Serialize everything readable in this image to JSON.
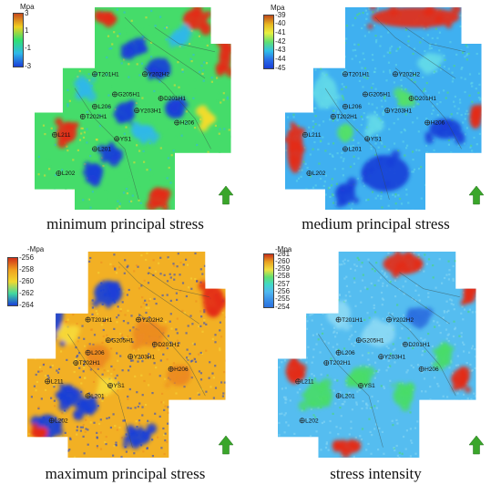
{
  "panels": [
    {
      "caption": "minimum principal stress",
      "unit": "Mpa",
      "ticks": [
        "3",
        "1",
        "-1",
        "-3"
      ],
      "colors": [
        "#c84a1c",
        "#f0d020",
        "#30e070",
        "#2fb8e8",
        "#1a3fd8"
      ],
      "palette": {
        "base": "#45dc6a",
        "light": "#2fb8e8",
        "dark": "#1a3fd8",
        "hot": "#e42a14",
        "warm": "#f3dc2a"
      }
    },
    {
      "caption": "medium principal stress",
      "unit": "Mpa",
      "ticks": [
        "-39",
        "-40",
        "-41",
        "-42",
        "-43",
        "-44",
        "-45"
      ],
      "colors": [
        "#c04a1a",
        "#e8b820",
        "#e8f040",
        "#60e070",
        "#30c0e8",
        "#2a70e8",
        "#1a3fd8"
      ],
      "palette": {
        "base": "#3fb0f0",
        "light": "#62d8e8",
        "dark": "#1a3fd8",
        "hot": "#e42a14",
        "warm": "#52e06a"
      }
    },
    {
      "caption": "maximum principal stress",
      "unit": "-Mpa",
      "ticks": [
        "-256",
        "-258",
        "-260",
        "-262",
        "-264"
      ],
      "colors": [
        "#d03018",
        "#f0a020",
        "#f0d830",
        "#40d8a0",
        "#1a3fd8"
      ],
      "palette": {
        "base": "#f2b024",
        "light": "#f6d838",
        "dark": "#1a3fd8",
        "hot": "#e42a14",
        "warm": "#ec8a20"
      }
    },
    {
      "caption": "stress intensity",
      "unit": "-Mpa",
      "ticks": [
        "-261",
        "-260",
        "-259",
        "-258",
        "-257",
        "-256",
        "-255",
        "-254"
      ],
      "colors": [
        "#c83018",
        "#e8a020",
        "#f0e040",
        "#60e070",
        "#40d8c8",
        "#50b8f0",
        "#3a90e8",
        "#2a70e0"
      ],
      "palette": {
        "base": "#55bdf0",
        "light": "#8ad8f4",
        "dark": "#2a70e0",
        "hot": "#e42a14",
        "warm": "#48dc68"
      }
    }
  ],
  "wells": [
    {
      "name": "T201H1",
      "u": 0.3,
      "v": 0.33
    },
    {
      "name": "Y202H2",
      "u": 0.55,
      "v": 0.33
    },
    {
      "name": "G205H1",
      "u": 0.4,
      "v": 0.43
    },
    {
      "name": "D201H1",
      "u": 0.63,
      "v": 0.45
    },
    {
      "name": "L206",
      "u": 0.3,
      "v": 0.49
    },
    {
      "name": "Y203H1",
      "u": 0.51,
      "v": 0.51
    },
    {
      "name": "T202H1",
      "u": 0.24,
      "v": 0.54
    },
    {
      "name": "H206",
      "u": 0.71,
      "v": 0.57
    },
    {
      "name": "L211",
      "u": 0.1,
      "v": 0.63
    },
    {
      "name": "YS1",
      "u": 0.41,
      "v": 0.65
    },
    {
      "name": "L201",
      "u": 0.3,
      "v": 0.7
    },
    {
      "name": "L202",
      "u": 0.12,
      "v": 0.82
    }
  ]
}
